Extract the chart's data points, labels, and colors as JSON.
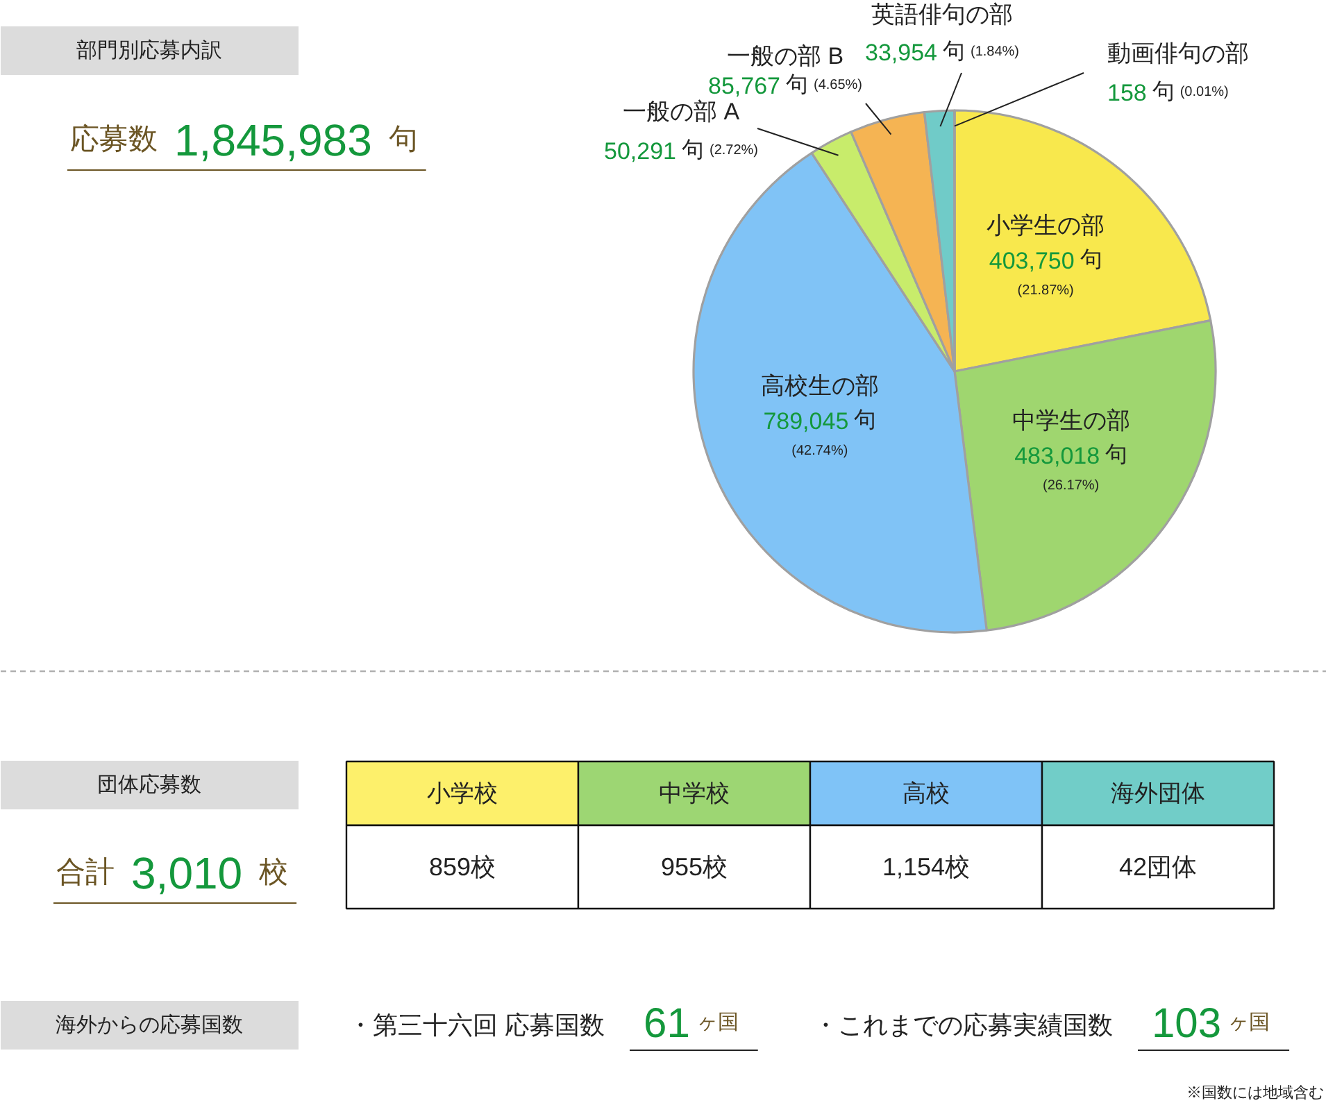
{
  "chart_data": [
    {
      "type": "other",
      "title": "部門別応募内訳",
      "annotations": [
        "応募数 1,845,983 句"
      ]
    },
    {
      "type": "pie",
      "categories": [
        "小学生の部",
        "中学生の部",
        "高校生の部",
        "一般の部 A",
        "一般の部 B",
        "英語俳句の部",
        "動画俳句の部"
      ],
      "values": [
        403750,
        483018,
        789045,
        50291,
        85767,
        33954,
        158
      ],
      "colors": [
        "#f8e84d",
        "#9fd66f",
        "#80c3f6",
        "#c8ec6b",
        "#f5b453",
        "#70cbc8",
        "#eeeeee"
      ],
      "value_labels": [
        "403,750 句 (21.87%)",
        "483,018 句 (26.17%)",
        "789,045 句 (42.74%)",
        "50,291 句 (2.72%)",
        "85,767 句 (4.65%)",
        "33,954 句 (1.84%)",
        "158 句 (0.01%)"
      ]
    },
    {
      "type": "other",
      "title": "団体応募数",
      "annotations": [
        "合計 3,010 校"
      ],
      "categories": [
        "小学校",
        "中学校",
        "高校",
        "海外団体"
      ],
      "colors": [
        "#fdf06b",
        "#9dd673",
        "#7fc3f7",
        "#71cdc8"
      ],
      "value_labels": [
        "859校",
        "955校",
        "1,154校",
        "42団体"
      ]
    },
    {
      "type": "other",
      "title": "海外からの応募国数",
      "annotations": [
        "・第三十六回 応募国数 61 ヶ国",
        "・これまでの応募実績国数 103 ヶ国",
        "※国数には地域含む"
      ]
    }
  ]
}
